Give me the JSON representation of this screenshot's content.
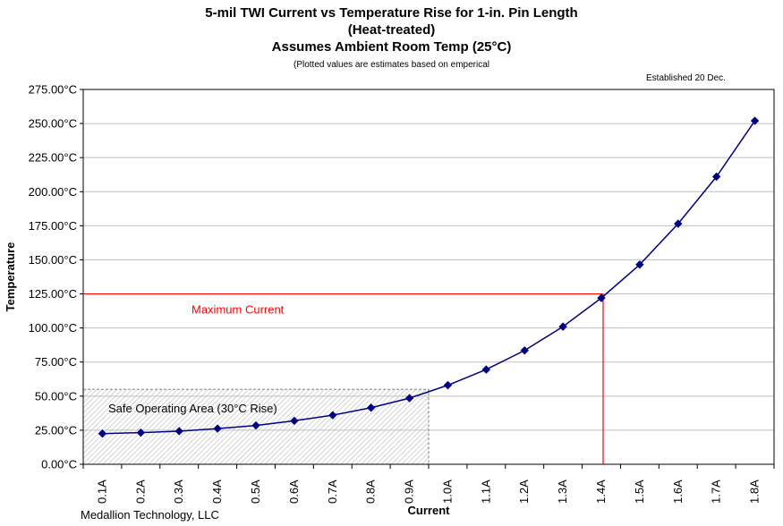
{
  "title": {
    "line1": "5-mil TWI Current vs Temperature Rise for 1-in. Pin Length",
    "line2": "(Heat-treated)",
    "line3": "Assumes Ambient Room Temp (25°C)"
  },
  "subnote": "(Plotted values are estimates based on emperical",
  "established": "Established 20 Dec.",
  "footer": "Medallion Technology, LLC",
  "colors": {
    "series": "#000080",
    "max_line": "#ff0000",
    "grid": "#c0c0c0",
    "safe_area_border": "#808080"
  },
  "chart_data": {
    "type": "line",
    "title": "5-mil TWI Current vs Temperature Rise for 1-in. Pin Length",
    "xlabel": "Current",
    "ylabel": "Temperature",
    "categories": [
      "0.1A",
      "0.2A",
      "0.3A",
      "0.4A",
      "0.5A",
      "0.6A",
      "0.7A",
      "0.8A",
      "0.9A",
      "1.0A",
      "1.1A",
      "1.2A",
      "1.3A",
      "1.4A",
      "1.5A",
      "1.6A",
      "1.7A",
      "1.8A"
    ],
    "series": [
      {
        "values": [
          22.5,
          23.2,
          24.3,
          26.2,
          28.5,
          31.9,
          36.0,
          41.5,
          48.5,
          58.0,
          69.5,
          83.5,
          101.0,
          122.0,
          146.5,
          176.5,
          211.0,
          252.0
        ]
      }
    ],
    "y_ticks": [
      "0.00°C",
      "25.00°C",
      "50.00°C",
      "75.00°C",
      "100.00°C",
      "125.00°C",
      "150.00°C",
      "175.00°C",
      "200.00°C",
      "225.00°C",
      "250.00°C",
      "275.00°C"
    ],
    "y_tick_values": [
      0,
      25,
      50,
      75,
      100,
      125,
      150,
      175,
      200,
      225,
      250,
      275
    ],
    "ylim": [
      0,
      275
    ],
    "grid": true,
    "max_current": {
      "label": "Maximum Current",
      "temperature": 125,
      "current_category_index": 13
    },
    "safe_area": {
      "label": "Safe Operating Area (30°C Rise)",
      "max_temperature": 55,
      "max_current_category_index": 9
    }
  }
}
